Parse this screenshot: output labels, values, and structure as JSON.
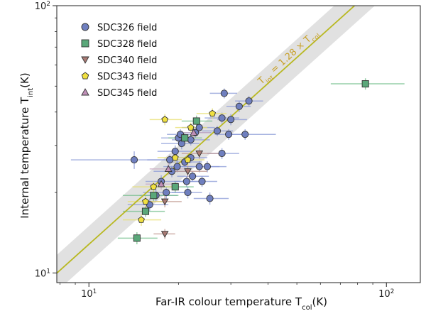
{
  "chart_data": {
    "type": "scatter",
    "x_scale": "log",
    "y_scale": "log",
    "xlim": [
      7.8,
      130
    ],
    "ylim": [
      9.2,
      100
    ],
    "xlabel_main": "Far-IR colour temperature T",
    "xlabel_sub": "col",
    "xlabel_unit": "(K)",
    "ylabel_main": "Internal temperature T",
    "ylabel_sub": "int",
    "ylabel_unit": "(K)",
    "x_ticks": [
      {
        "value": 10,
        "base": "10",
        "exp": "1"
      },
      {
        "value": 100,
        "base": "10",
        "exp": "2"
      }
    ],
    "y_ticks": [
      {
        "value": 10,
        "base": "10",
        "exp": "1"
      },
      {
        "value": 100,
        "base": "10",
        "exp": "2"
      }
    ],
    "fit": {
      "slope": 1.28,
      "label_main": "T",
      "label_sub1": "int",
      "label_mid": " = 1.28 × T",
      "label_sub2": "col",
      "line_color": "#b8b820",
      "band_color": "#dcdcdc",
      "label_color": "#c8a028"
    },
    "legend_position": "upper-left",
    "series": [
      {
        "name": "SDC326 field",
        "marker": "circle",
        "color": "#6f7fbf",
        "errcolor": "#8c9bd8",
        "points": [
          [
            14.2,
            26.5,
            5.5,
            6.0,
            2.0
          ],
          [
            16.0,
            18.0,
            2.5,
            2.5,
            1.0
          ],
          [
            16.8,
            19.5,
            2.0,
            3.0,
            1.0
          ],
          [
            17.5,
            22.0,
            2.0,
            3.5,
            1.2
          ],
          [
            18.2,
            20.0,
            3.0,
            4.0,
            1.0
          ],
          [
            18.7,
            26.5,
            3.0,
            3.5,
            1.2
          ],
          [
            19.0,
            24.0,
            2.5,
            2.5,
            1.2
          ],
          [
            19.5,
            28.5,
            2.5,
            3.0,
            1.5
          ],
          [
            19.8,
            25.0,
            2.0,
            2.5,
            1.2
          ],
          [
            20.0,
            32.0,
            2.5,
            2.5,
            1.5
          ],
          [
            20.3,
            33.0,
            2.0,
            2.5,
            1.5
          ],
          [
            20.5,
            30.5,
            3.0,
            3.0,
            1.5
          ],
          [
            21.0,
            26.0,
            2.5,
            3.0,
            1.2
          ],
          [
            21.3,
            22.0,
            2.0,
            3.0,
            1.0
          ],
          [
            21.5,
            20.0,
            2.5,
            2.5,
            1.0
          ],
          [
            22.0,
            31.5,
            3.0,
            3.5,
            1.5
          ],
          [
            22.3,
            23.0,
            2.5,
            3.0,
            1.0
          ],
          [
            22.8,
            33.5,
            3.0,
            3.0,
            1.5
          ],
          [
            23.5,
            35.0,
            3.0,
            3.0,
            1.5
          ],
          [
            23.5,
            25.0,
            3.0,
            4.0,
            1.2
          ],
          [
            24.0,
            22.0,
            3.0,
            3.0,
            1.0
          ],
          [
            25.0,
            25.0,
            3.0,
            4.0,
            1.2
          ],
          [
            25.5,
            19.0,
            3.0,
            4.0,
            1.0
          ],
          [
            27.0,
            34.0,
            3.0,
            3.5,
            1.5
          ],
          [
            28.0,
            38.0,
            3.5,
            4.0,
            1.8
          ],
          [
            28.0,
            28.0,
            3.0,
            4.0,
            1.3
          ],
          [
            28.5,
            47.0,
            3.0,
            3.0,
            2.0
          ],
          [
            29.5,
            33.0,
            3.0,
            3.5,
            1.5
          ],
          [
            30.0,
            37.5,
            3.0,
            4.0,
            1.8
          ],
          [
            32.0,
            42.0,
            3.0,
            3.0,
            2.0
          ],
          [
            33.5,
            33.0,
            4.0,
            9.0,
            1.5
          ],
          [
            34.5,
            44.0,
            3.5,
            4.0,
            2.0
          ],
          [
            22.0,
            27.0,
            2.5,
            3.0,
            1.2
          ]
        ]
      },
      {
        "name": "SDC328 field",
        "marker": "square",
        "color": "#5aa87a",
        "errcolor": "#74bf8c",
        "points": [
          [
            14.5,
            13.5,
            2.0,
            2.5,
            0.7
          ],
          [
            15.5,
            17.0,
            2.5,
            2.5,
            0.8
          ],
          [
            16.5,
            19.5,
            3.5,
            3.5,
            1.0
          ],
          [
            19.5,
            21.0,
            2.5,
            3.0,
            1.0
          ],
          [
            21.0,
            32.0,
            2.5,
            3.0,
            1.5
          ],
          [
            23.0,
            37.0,
            2.5,
            3.0,
            1.8
          ],
          [
            85.0,
            51.0,
            20.0,
            30.0,
            2.5
          ]
        ]
      },
      {
        "name": "SDC340 field",
        "marker": "triangle-down",
        "color": "#a87a74",
        "errcolor": "#c09890",
        "points": [
          [
            18.0,
            14.0,
            1.5,
            1.5,
            0.6
          ],
          [
            18.0,
            18.5,
            2.0,
            2.5,
            0.9
          ],
          [
            21.5,
            24.0,
            3.0,
            3.5,
            1.2
          ],
          [
            23.5,
            28.0,
            3.0,
            4.0,
            1.3
          ]
        ]
      },
      {
        "name": "SDC343 field",
        "marker": "pentagon",
        "color": "#f0e040",
        "errcolor": "#e8e070",
        "points": [
          [
            15.0,
            15.8,
            2.0,
            2.5,
            0.8
          ],
          [
            15.5,
            18.5,
            2.0,
            2.5,
            0.9
          ],
          [
            16.5,
            21.0,
            2.5,
            3.0,
            1.0
          ],
          [
            18.0,
            37.5,
            2.0,
            2.5,
            1.8
          ],
          [
            19.5,
            27.0,
            2.5,
            3.0,
            1.3
          ],
          [
            21.5,
            26.5,
            2.5,
            3.0,
            1.3
          ],
          [
            22.0,
            35.0,
            2.5,
            3.0,
            1.5
          ],
          [
            26.0,
            39.5,
            3.0,
            3.0,
            1.8
          ]
        ]
      },
      {
        "name": "SDC345 field",
        "marker": "triangle-up",
        "color": "#c090b8",
        "errcolor": "#c8a8c0",
        "points": [
          [
            17.5,
            21.5,
            2.0,
            2.5,
            1.0
          ],
          [
            18.5,
            24.5,
            2.5,
            3.0,
            1.2
          ],
          [
            22.5,
            33.5,
            2.5,
            3.0,
            1.5
          ]
        ]
      }
    ]
  }
}
